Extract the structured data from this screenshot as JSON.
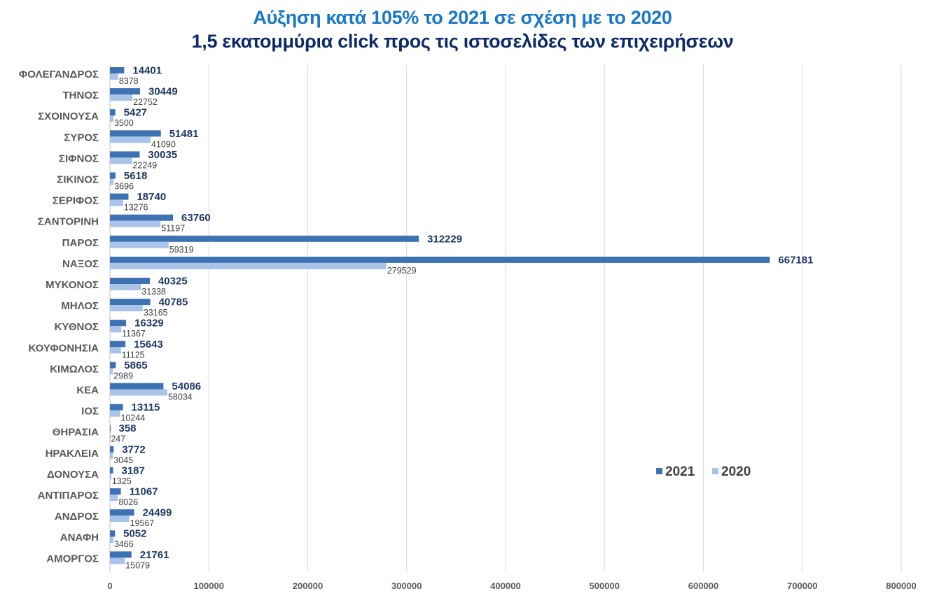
{
  "title": {
    "line1": "Αύξηση κατά 105% το 2021 σε σχέση με το 2020",
    "line2": "1,5 εκατομμύρια click προς τις ιστοσελίδες των επιχειρήσεων"
  },
  "colors": {
    "series_2021": "#3d72b3",
    "series_2020": "#a9c4e8",
    "grid": "#d9d9d9"
  },
  "chart_data": {
    "type": "bar",
    "orientation": "horizontal",
    "categories": [
      "ΦΟΛΕΓΑΝΔΡΟΣ",
      "ΤΗΝΟΣ",
      "ΣΧΟΙΝΟΥΣΑ",
      "ΣΥΡΟΣ",
      "ΣΙΦΝΟΣ",
      "ΣΙΚΙΝΟΣ",
      "ΣΕΡΙΦΟΣ",
      "ΣΑΝΤΟΡΙΝΗ",
      "ΠΑΡΟΣ",
      "ΝΑΞΟΣ",
      "ΜΥΚΟΝΟΣ",
      "ΜΗΛΟΣ",
      "ΚΥΘΝΟΣ",
      "ΚΟΥΦΟΝΗΣΙΑ",
      "ΚΙΜΩΛΟΣ",
      "ΚΕΑ",
      "ΙΟΣ",
      "ΘΗΡΑΣΙΑ",
      "ΗΡΑΚΛΕΙΑ",
      "ΔΟΝΟΥΣΑ",
      "ΑΝΤΙΠΑΡΟΣ",
      "ΑΝΔΡΟΣ",
      "ΑΝΑΦΗ",
      "ΑΜΟΡΓΟΣ"
    ],
    "series": [
      {
        "name": "2021",
        "values": [
          14401,
          30449,
          5427,
          51481,
          30035,
          5618,
          18740,
          63760,
          312229,
          667181,
          40325,
          40785,
          16329,
          15643,
          5865,
          54086,
          13115,
          358,
          3772,
          3187,
          11067,
          24499,
          5052,
          21761
        ]
      },
      {
        "name": "2020",
        "values": [
          8378,
          22752,
          3500,
          41090,
          22249,
          3696,
          13276,
          51197,
          59319,
          279529,
          31338,
          33165,
          11367,
          11125,
          2989,
          58034,
          10244,
          247,
          3045,
          1325,
          8026,
          19567,
          3466,
          15079
        ]
      }
    ],
    "xlim": [
      0,
      800000
    ],
    "xticks": [
      0,
      100000,
      200000,
      300000,
      400000,
      500000,
      600000,
      700000,
      800000
    ],
    "xticklabels": [
      "0",
      "100000",
      "200000",
      "300000",
      "400000",
      "500000",
      "600000",
      "700000",
      "800000"
    ],
    "grid": "vertical",
    "legend": "right",
    "data_labels": true
  }
}
